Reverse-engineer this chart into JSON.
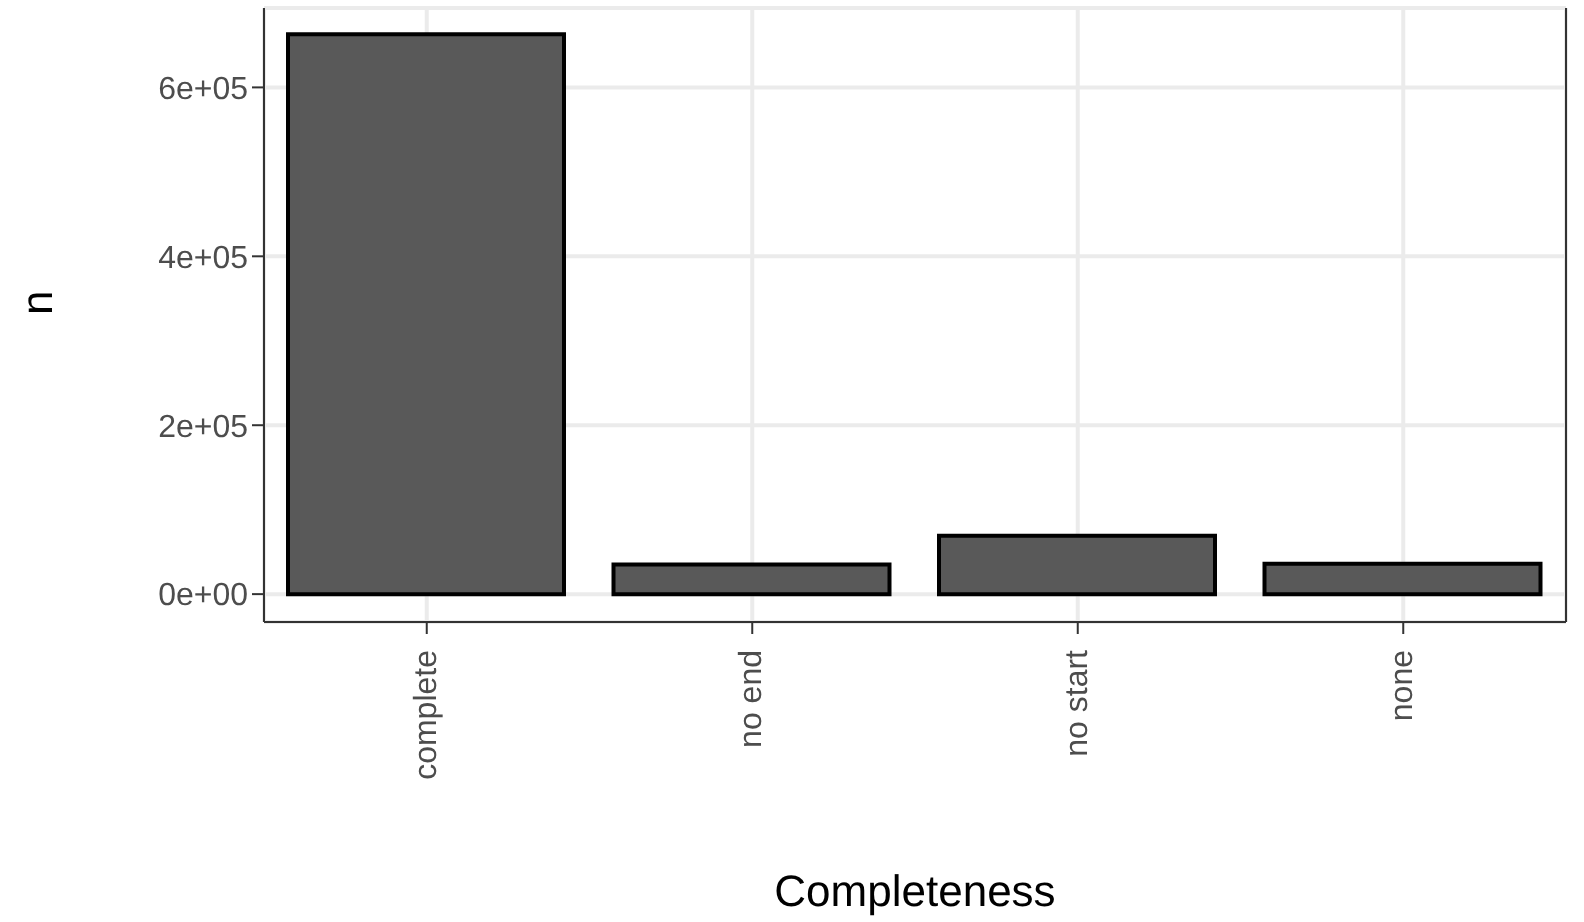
{
  "chart_data": {
    "type": "bar",
    "xlabel": "Completeness",
    "ylabel": "n",
    "categories": [
      "complete",
      "no end",
      "no start",
      "none"
    ],
    "values": [
      663000,
      35000,
      69000,
      36000
    ],
    "color": "#595959",
    "ylim": [
      -33000,
      694000
    ],
    "yticks": [
      {
        "value": 0,
        "label": "0e+00"
      },
      {
        "value": 200000,
        "label": "2e+05"
      },
      {
        "value": 400000,
        "label": "4e+05"
      },
      {
        "value": 600000,
        "label": "6e+05"
      }
    ],
    "grid": true
  }
}
